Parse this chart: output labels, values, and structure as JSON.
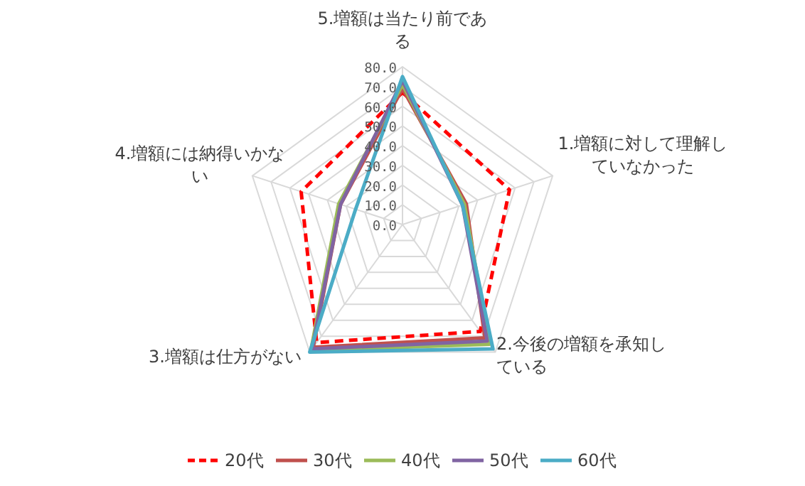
{
  "chart_data": {
    "type": "radar",
    "categories": [
      "5.増額は当たり前である",
      "1.増額に対して理解していなかった",
      "2.今後の増額を承知している",
      "3.増額は仕方がない",
      "4.増額には納得いかない"
    ],
    "series": [
      {
        "name": "20代",
        "color": "#ff0000",
        "line_style": "dashed",
        "values": [
          67,
          57,
          67,
          74,
          54
        ]
      },
      {
        "name": "30代",
        "color": "#c0504d",
        "values": [
          69,
          34,
          71,
          77,
          33
        ]
      },
      {
        "name": "40代",
        "color": "#9bbb59",
        "values": [
          71,
          33,
          75,
          79,
          34
        ]
      },
      {
        "name": "50代",
        "color": "#8064a2",
        "values": [
          73,
          32,
          73,
          78,
          33
        ]
      },
      {
        "name": "60代",
        "color": "#4bacc6",
        "values": [
          75,
          32,
          78,
          80,
          25
        ]
      }
    ],
    "ylim": [
      0,
      80
    ],
    "yticks": [
      {
        "value": 0,
        "label": "0.0"
      },
      {
        "value": 10,
        "label": "10.0"
      },
      {
        "value": 20,
        "label": "20.0"
      },
      {
        "value": 30,
        "label": "30.0"
      },
      {
        "value": 40,
        "label": "40.0"
      },
      {
        "value": 50,
        "label": "50.0"
      },
      {
        "value": 60,
        "label": "60.0"
      },
      {
        "value": 70,
        "label": "70.0"
      },
      {
        "value": 80,
        "label": "80.0"
      }
    ],
    "grid": true,
    "legend": "bottom",
    "marker": "none",
    "line_style": "solid"
  }
}
